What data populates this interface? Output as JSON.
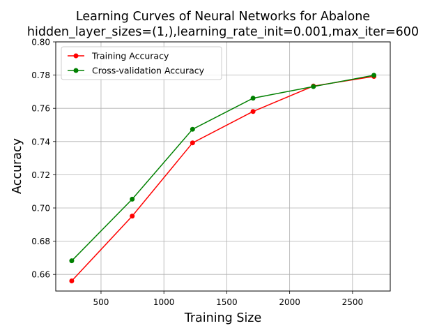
{
  "chart_data": {
    "type": "line",
    "title_line1": "Learning Curves of Neural Networks for Abalone",
    "title_line2": "hidden_layer_sizes=(1,),learning_rate_init=0.001,max_iter=600",
    "xlabel": "Training Size",
    "ylabel": "Accuracy",
    "xlim": [
      140,
      2800
    ],
    "ylim": [
      0.65,
      0.8
    ],
    "xticks": [
      500,
      1000,
      1500,
      2000,
      2500
    ],
    "yticks": [
      0.66,
      0.68,
      0.7,
      0.72,
      0.74,
      0.76,
      0.78,
      0.8
    ],
    "grid": true,
    "legend_position": "upper-left",
    "x": [
      267,
      748,
      1228,
      1709,
      2189,
      2670
    ],
    "series": [
      {
        "name": "Training Accuracy",
        "color": "#ff0000",
        "marker": "circle",
        "values": [
          0.6561,
          0.6951,
          0.7392,
          0.7581,
          0.7734,
          0.7792
        ]
      },
      {
        "name": "Cross-validation Accuracy",
        "color": "#008000",
        "marker": "circle",
        "values": [
          0.6682,
          0.7053,
          0.7474,
          0.7661,
          0.7731,
          0.7799
        ]
      }
    ]
  }
}
